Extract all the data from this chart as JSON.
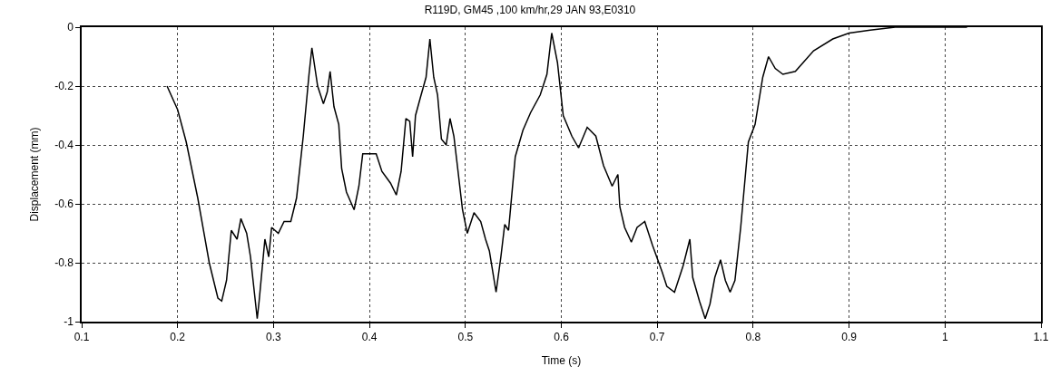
{
  "chart_data": {
    "type": "line",
    "title": "R119D, GM45 ,100 km/hr,29 JAN 93,E0310",
    "xlabel": "Time (s)",
    "ylabel": "Displacement (mm)",
    "xlim": [
      0.1,
      1.1
    ],
    "ylim": [
      -1,
      0
    ],
    "xticks": [
      0.1,
      0.2,
      0.3,
      0.4,
      0.5,
      0.6,
      0.7,
      0.8,
      0.9,
      1,
      1.1
    ],
    "yticks": [
      -1,
      -0.8,
      -0.6,
      -0.4,
      -0.2,
      0
    ],
    "grid": true,
    "line_style": "solid",
    "marker": "none",
    "series": [
      {
        "color": "#000000",
        "x": [
          0.189,
          0.2,
          0.209,
          0.221,
          0.233,
          0.242,
          0.246,
          0.251,
          0.256,
          0.262,
          0.266,
          0.272,
          0.276,
          0.281,
          0.283,
          0.285,
          0.291,
          0.295,
          0.298,
          0.305,
          0.311,
          0.318,
          0.324,
          0.331,
          0.337,
          0.34,
          0.346,
          0.352,
          0.356,
          0.359,
          0.363,
          0.368,
          0.371,
          0.376,
          0.384,
          0.389,
          0.393,
          0.399,
          0.407,
          0.413,
          0.422,
          0.428,
          0.433,
          0.438,
          0.442,
          0.445,
          0.448,
          0.453,
          0.459,
          0.463,
          0.467,
          0.471,
          0.475,
          0.48,
          0.484,
          0.488,
          0.492,
          0.497,
          0.502,
          0.509,
          0.516,
          0.521,
          0.525,
          0.532,
          0.537,
          0.541,
          0.545,
          0.552,
          0.56,
          0.568,
          0.578,
          0.585,
          0.59,
          0.596,
          0.602,
          0.611,
          0.618,
          0.627,
          0.636,
          0.644,
          0.653,
          0.659,
          0.661,
          0.666,
          0.673,
          0.679,
          0.687,
          0.695,
          0.705,
          0.71,
          0.718,
          0.727,
          0.734,
          0.737,
          0.744,
          0.75,
          0.755,
          0.76,
          0.766,
          0.771,
          0.776,
          0.781,
          0.787,
          0.795,
          0.802,
          0.81,
          0.816,
          0.823,
          0.831,
          0.844,
          0.863,
          0.883,
          0.9,
          0.922,
          0.948,
          1.0,
          1.023
        ],
        "values": [
          -0.2,
          -0.28,
          -0.39,
          -0.58,
          -0.8,
          -0.92,
          -0.93,
          -0.86,
          -0.69,
          -0.72,
          -0.65,
          -0.7,
          -0.78,
          -0.93,
          -0.99,
          -0.93,
          -0.72,
          -0.78,
          -0.68,
          -0.7,
          -0.66,
          -0.66,
          -0.58,
          -0.37,
          -0.16,
          -0.07,
          -0.2,
          -0.26,
          -0.22,
          -0.15,
          -0.27,
          -0.33,
          -0.48,
          -0.56,
          -0.62,
          -0.54,
          -0.43,
          -0.43,
          -0.43,
          -0.49,
          -0.53,
          -0.57,
          -0.49,
          -0.31,
          -0.32,
          -0.44,
          -0.3,
          -0.24,
          -0.17,
          -0.04,
          -0.17,
          -0.23,
          -0.38,
          -0.4,
          -0.31,
          -0.37,
          -0.48,
          -0.62,
          -0.7,
          -0.63,
          -0.66,
          -0.72,
          -0.76,
          -0.9,
          -0.78,
          -0.67,
          -0.69,
          -0.44,
          -0.35,
          -0.29,
          -0.23,
          -0.16,
          -0.02,
          -0.12,
          -0.3,
          -0.37,
          -0.41,
          -0.34,
          -0.37,
          -0.47,
          -0.54,
          -0.5,
          -0.61,
          -0.68,
          -0.73,
          -0.68,
          -0.66,
          -0.74,
          -0.83,
          -0.88,
          -0.9,
          -0.81,
          -0.72,
          -0.85,
          -0.93,
          -0.99,
          -0.94,
          -0.85,
          -0.79,
          -0.86,
          -0.9,
          -0.86,
          -0.68,
          -0.39,
          -0.33,
          -0.17,
          -0.1,
          -0.14,
          -0.16,
          -0.15,
          -0.08,
          -0.04,
          -0.02,
          -0.01,
          0,
          0,
          0
        ]
      }
    ]
  }
}
